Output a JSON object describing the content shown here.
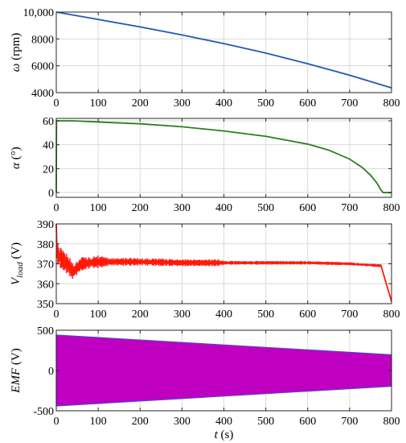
{
  "chart_data": [
    {
      "type": "line",
      "ylabel_symbol": "ω",
      "ylabel_unit": " (rpm)",
      "xlim": [
        0,
        800
      ],
      "ylim": [
        4000,
        10000
      ],
      "yticks": [
        4000,
        6000,
        8000,
        10000
      ],
      "ytick_labels": [
        "4000",
        "6000",
        "8000",
        "10,000"
      ],
      "xticks": [
        0,
        100,
        200,
        300,
        400,
        500,
        600,
        700,
        800
      ],
      "grid": true,
      "series": [
        {
          "color": "#2457b8",
          "x": [
            0,
            100,
            200,
            300,
            400,
            500,
            600,
            700,
            800
          ],
          "y": [
            10000,
            9450,
            8900,
            8300,
            7650,
            6950,
            6150,
            5300,
            4350
          ]
        }
      ]
    },
    {
      "type": "line",
      "ylabel_symbol": "α",
      "ylabel_unit": " (°)",
      "xlim": [
        0,
        800
      ],
      "ylim": [
        -4,
        62
      ],
      "yticks": [
        0,
        20,
        40,
        60
      ],
      "ytick_labels": [
        "0",
        "20",
        "40",
        "60"
      ],
      "xticks": [
        0,
        100,
        200,
        300,
        400,
        500,
        600,
        700,
        800
      ],
      "grid": true,
      "series": [
        {
          "color": "#2e7d1e",
          "x": [
            0,
            0.5,
            40,
            100,
            200,
            300,
            400,
            500,
            600,
            650,
            700,
            730,
            750,
            765,
            775,
            780,
            790,
            800
          ],
          "y": [
            0,
            60,
            60,
            59,
            57.5,
            55,
            51.5,
            47,
            40.5,
            35.5,
            28,
            21,
            14.5,
            8,
            2,
            0,
            0,
            0
          ]
        }
      ]
    },
    {
      "type": "line",
      "ylabel_symbol": "V",
      "ylabel_sub": "load",
      "ylabel_unit": " (V)",
      "xlim": [
        0,
        800
      ],
      "ylim": [
        350,
        390
      ],
      "yticks": [
        350,
        360,
        370,
        380,
        390
      ],
      "ytick_labels": [
        "350",
        "360",
        "370",
        "380",
        "390"
      ],
      "xticks": [
        0,
        100,
        200,
        300,
        400,
        500,
        600,
        700,
        800
      ],
      "grid": true,
      "series": [
        {
          "color": "#ff1a00",
          "x": [
            0,
            2,
            10,
            20,
            30,
            40,
            60,
            100,
            200,
            300,
            400,
            500,
            600,
            700,
            775,
            800
          ],
          "y": [
            390,
            375,
            373,
            371,
            369,
            366,
            370,
            371,
            371,
            370.5,
            370.5,
            370.5,
            370.5,
            370,
            369,
            351
          ]
        }
      ]
    },
    {
      "type": "area",
      "ylabel_symbol": "EMF",
      "ylabel_unit": " (V)",
      "xlabel_symbol": "t",
      "xlabel_unit": "  (s)",
      "xlim": [
        0,
        800
      ],
      "ylim": [
        -500,
        500
      ],
      "yticks": [
        -500,
        0,
        500
      ],
      "ytick_labels": [
        "-500",
        "0",
        "500"
      ],
      "xticks": [
        0,
        100,
        200,
        300,
        400,
        500,
        600,
        700,
        800
      ],
      "grid": true,
      "series": [
        {
          "color": "#c000c0",
          "x": [
            0,
            800
          ],
          "y_upper": [
            440,
            195
          ],
          "y_lower": [
            -440,
            -195
          ]
        }
      ]
    }
  ]
}
